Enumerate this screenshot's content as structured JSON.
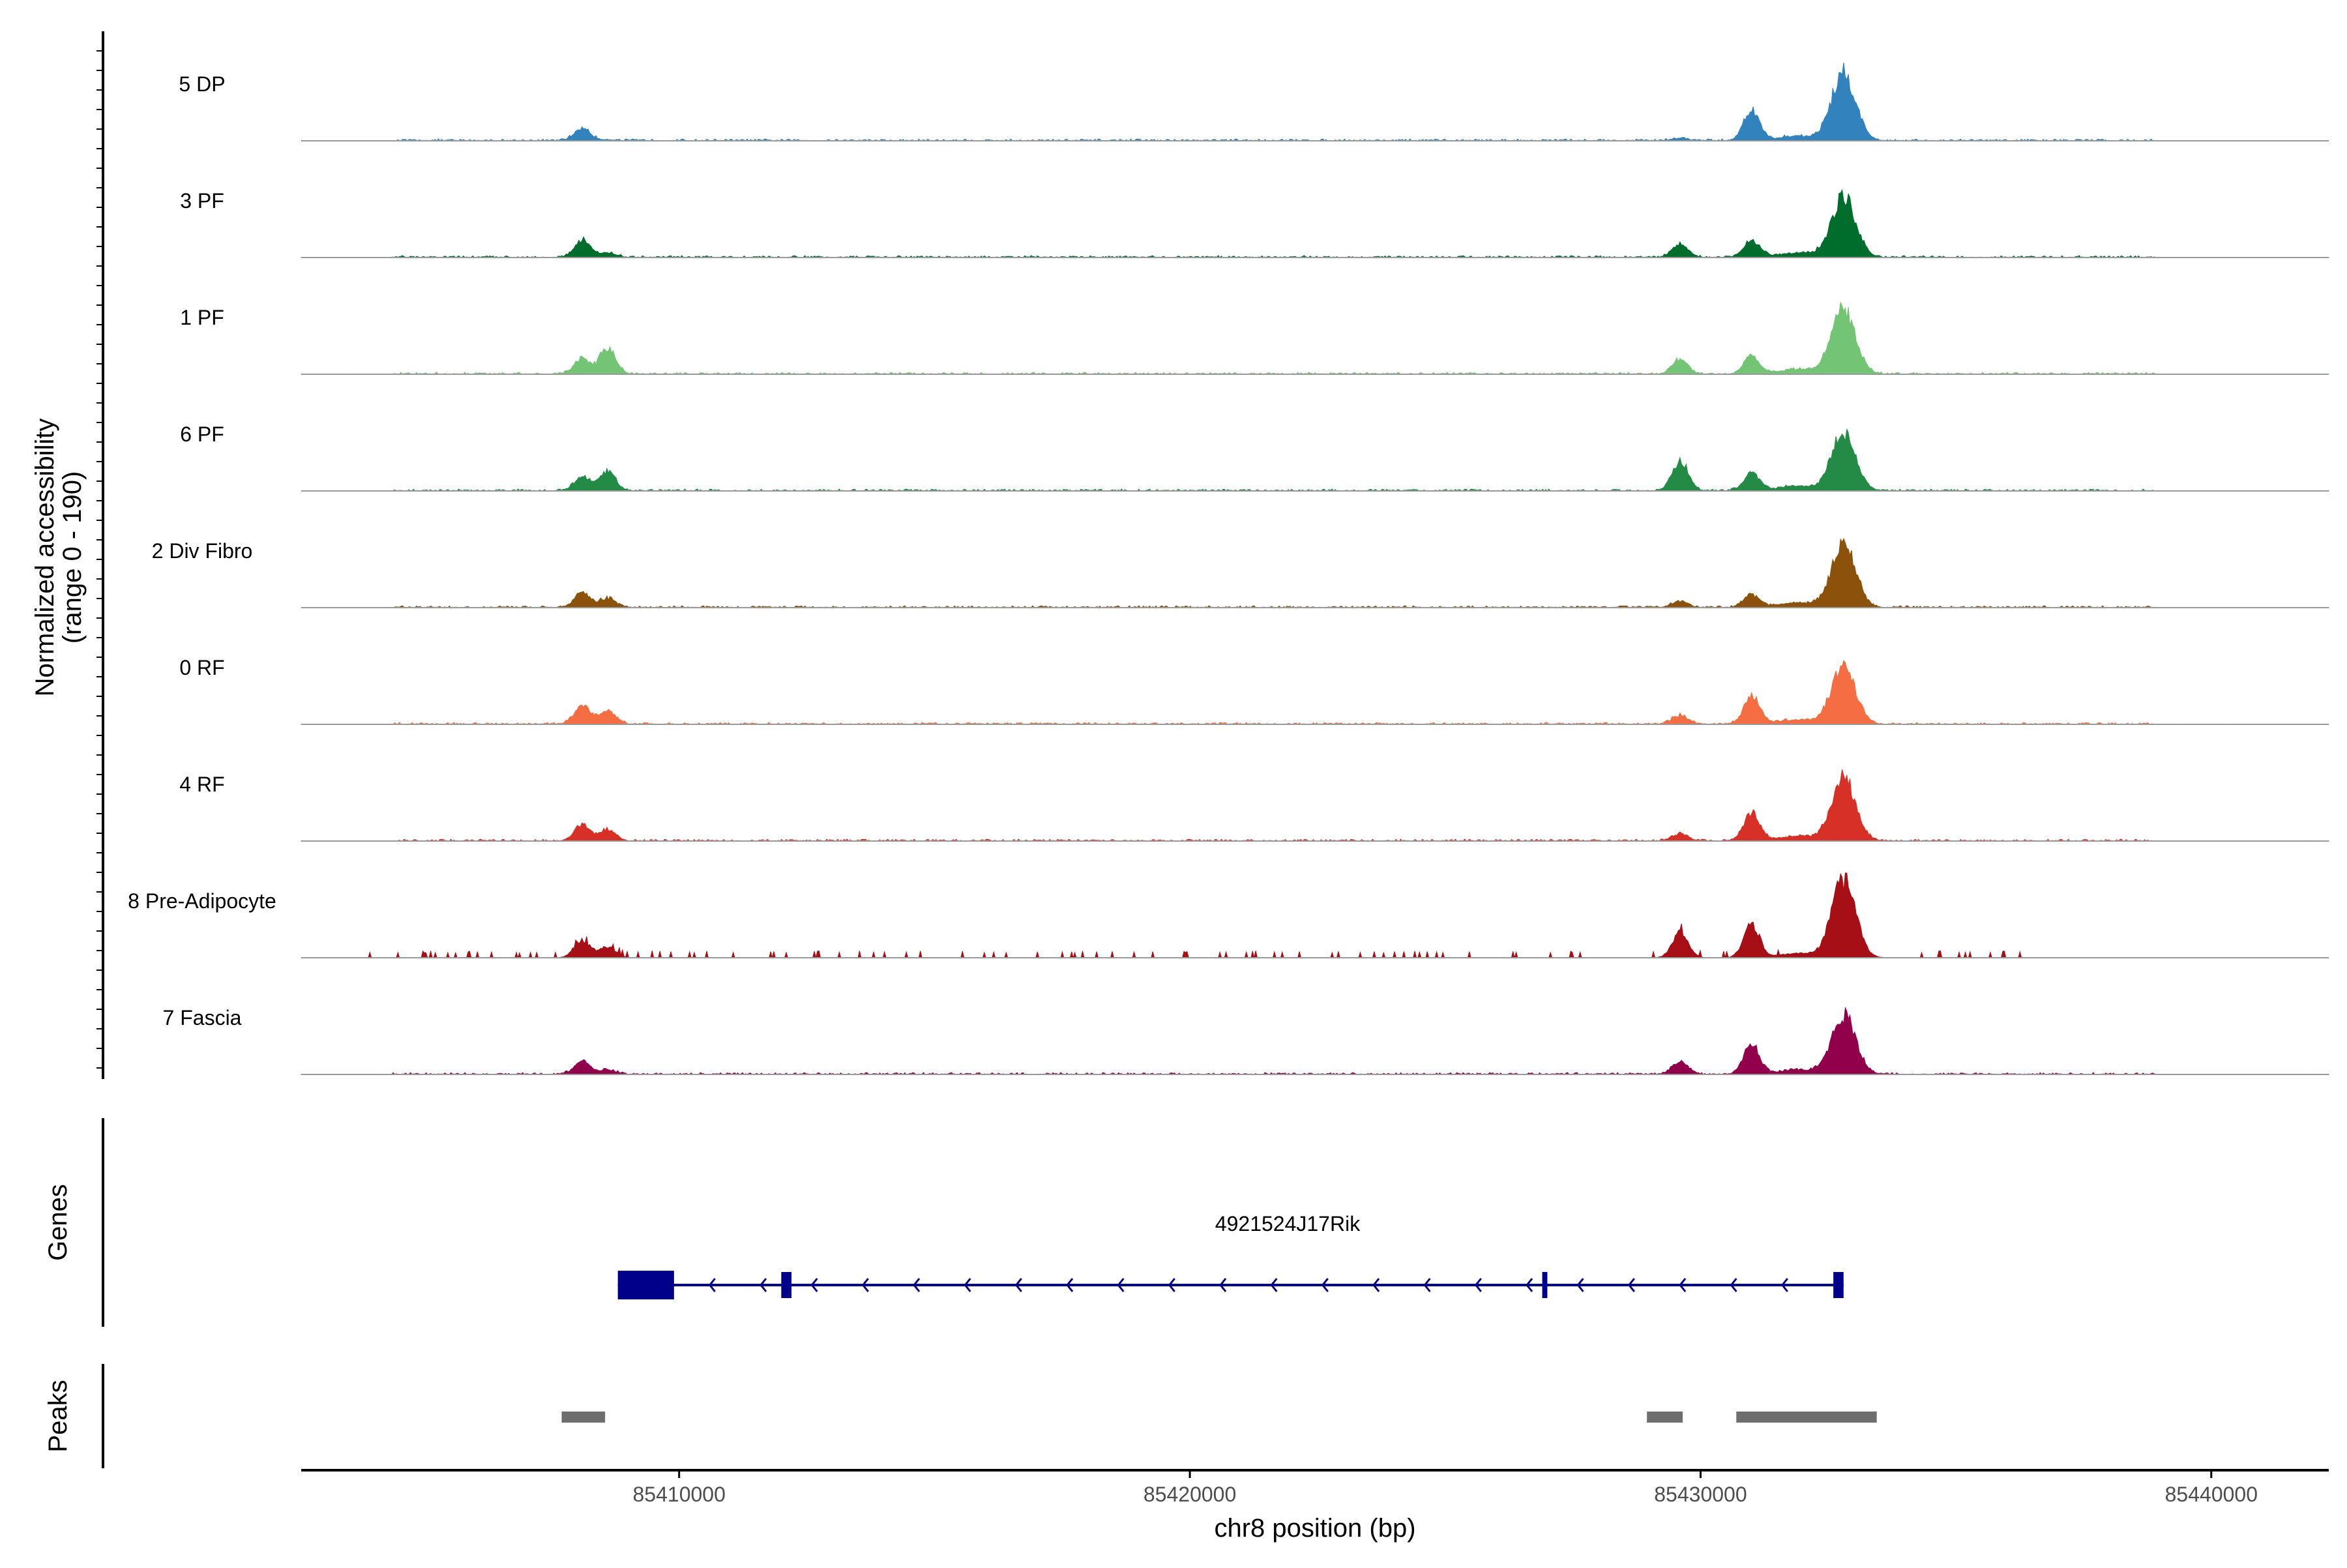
{
  "chart_data": {
    "type": "area",
    "title": "",
    "xlabel": "chr8 position (bp)",
    "ylabel": "Normalized accessibility",
    "ylabel_sub": "(range 0 - 190)",
    "xlim": [
      85402600,
      85442300
    ],
    "x_ticks": [
      85410000,
      85420000,
      85430000,
      85440000
    ],
    "x_tick_labels": [
      "85410000",
      "85420000",
      "85430000",
      "85440000"
    ],
    "y_range": [
      0,
      190
    ],
    "peak_positions_bp": [
      85408100,
      85408600,
      85429600,
      85431000,
      85432800
    ],
    "tracks": [
      {
        "name": "5 DP",
        "color": "#3182bd",
        "peaks": [
          [
            85408100,
            27
          ],
          [
            85408600,
            2
          ],
          [
            85429600,
            5
          ],
          [
            85431000,
            68
          ],
          [
            85432800,
            150
          ]
        ]
      },
      {
        "name": "3 PF",
        "color": "#006d2c",
        "peaks": [
          [
            85408100,
            38
          ],
          [
            85408600,
            10
          ],
          [
            85429600,
            28
          ],
          [
            85431000,
            38
          ],
          [
            85432800,
            135
          ]
        ]
      },
      {
        "name": "1 PF",
        "color": "#74c476",
        "peaks": [
          [
            85408100,
            32
          ],
          [
            85408600,
            58
          ],
          [
            85429600,
            32
          ],
          [
            85431000,
            40
          ],
          [
            85432800,
            145
          ]
        ]
      },
      {
        "name": "6 PF",
        "color": "#238b45",
        "peaks": [
          [
            85408100,
            30
          ],
          [
            85408600,
            45
          ],
          [
            85429600,
            65
          ],
          [
            85431000,
            40
          ],
          [
            85432800,
            130
          ]
        ]
      },
      {
        "name": "2 Div Fibro",
        "color": "#8c510a",
        "peaks": [
          [
            85408100,
            32
          ],
          [
            85408600,
            20
          ],
          [
            85429600,
            14
          ],
          [
            85431000,
            28
          ],
          [
            85432800,
            140
          ]
        ]
      },
      {
        "name": "0 RF",
        "color": "#f46d43",
        "peaks": [
          [
            85408100,
            42
          ],
          [
            85408600,
            30
          ],
          [
            85429600,
            20
          ],
          [
            85431000,
            60
          ],
          [
            85432800,
            130
          ]
        ]
      },
      {
        "name": "4 RF",
        "color": "#d73027",
        "peaks": [
          [
            85408100,
            36
          ],
          [
            85408600,
            25
          ],
          [
            85429600,
            15
          ],
          [
            85431000,
            62
          ],
          [
            85432800,
            140
          ]
        ]
      },
      {
        "name": "8 Pre-Adipocyte",
        "color": "#a50f15",
        "peaks": [
          [
            85408100,
            40
          ],
          [
            85408600,
            25
          ],
          [
            85429600,
            55
          ],
          [
            85431000,
            75
          ],
          [
            85432800,
            170
          ]
        ]
      },
      {
        "name": "7 Fascia",
        "color": "#91004b",
        "peaks": [
          [
            85408100,
            28
          ],
          [
            85408600,
            10
          ],
          [
            85429600,
            28
          ],
          [
            85431000,
            65
          ],
          [
            85432800,
            130
          ]
        ]
      }
    ],
    "gene_track": {
      "title": "Genes",
      "gene": "4921524J17Rik",
      "strand": "-",
      "start": 85408800,
      "end": 85432800,
      "exons": [
        [
          85408800,
          85409900
        ],
        [
          85412000,
          85412200
        ],
        [
          85426900,
          85427000
        ],
        [
          85432600,
          85432800
        ]
      ],
      "color": "#00008b"
    },
    "peak_track": {
      "title": "Peaks",
      "color": "#6e6e6e",
      "peaks": [
        [
          85407700,
          85408550
        ],
        [
          85428950,
          85429650
        ],
        [
          85430700,
          85433450
        ]
      ]
    }
  }
}
